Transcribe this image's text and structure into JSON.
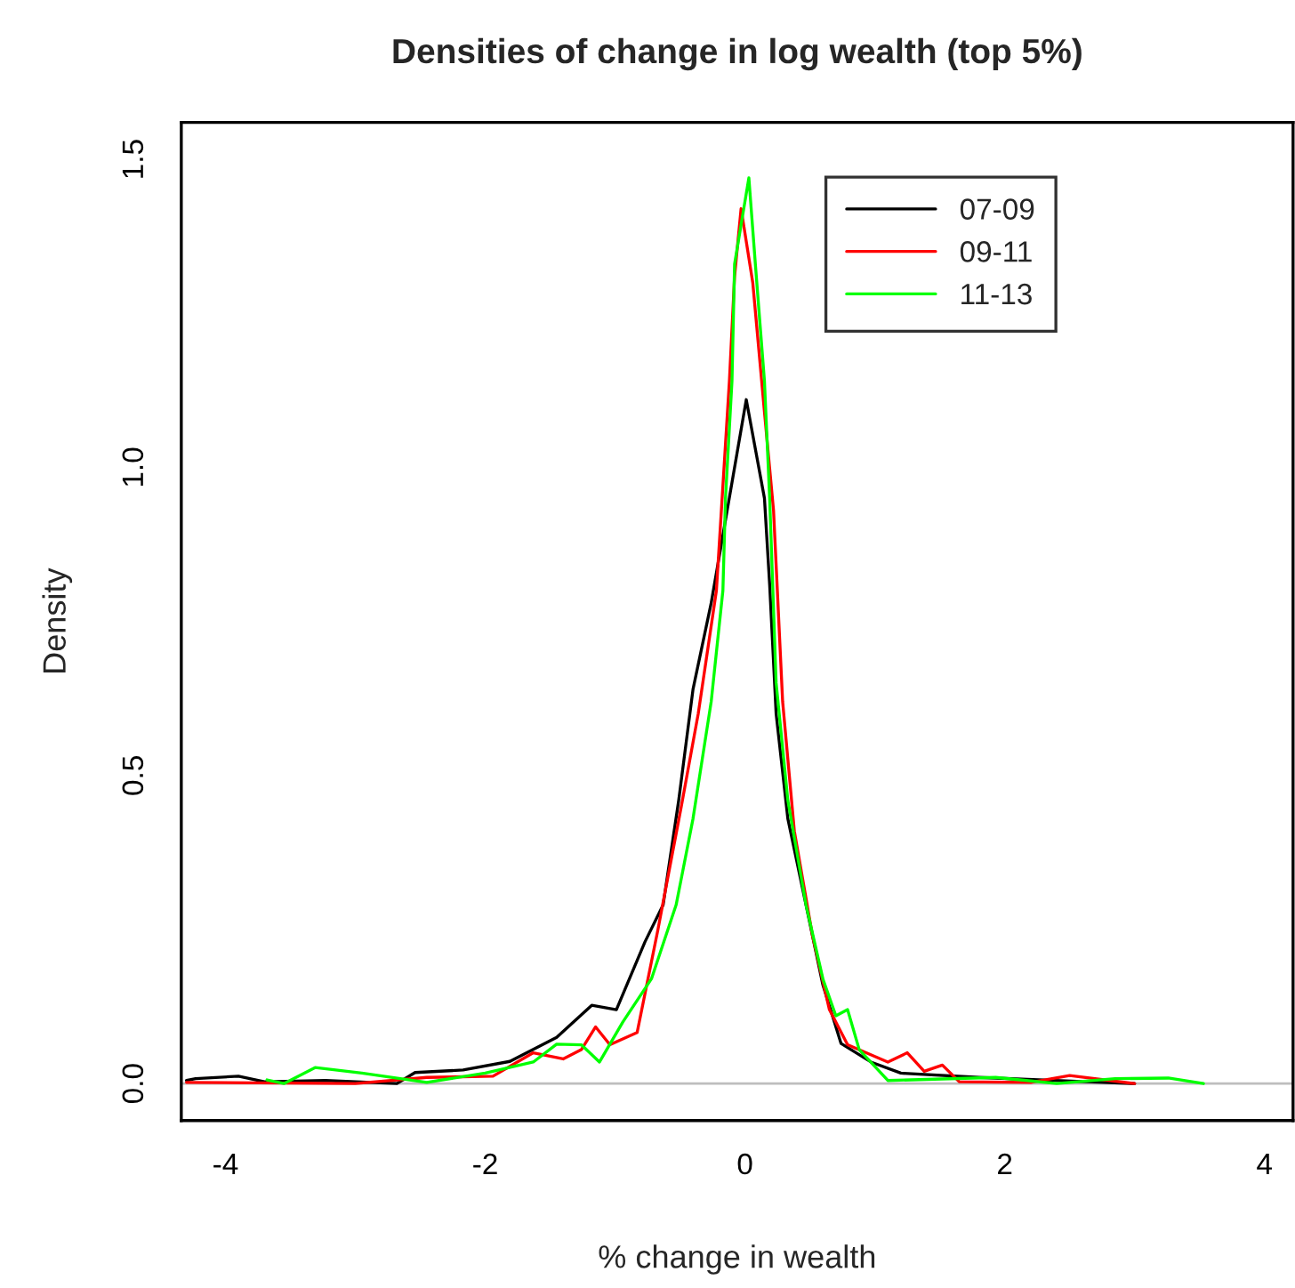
{
  "chart_data": {
    "type": "line",
    "title": "Densities of change in log wealth (top 5%)",
    "xlabel": "% change in wealth",
    "ylabel": "Density",
    "xlim": [
      -4.34,
      4.22
    ],
    "xticks": [
      {
        "value": -4,
        "label": "-4"
      },
      {
        "value": -2,
        "label": "-2"
      },
      0,
      2,
      4
    ],
    "ylim": [
      -0.06,
      1.56
    ],
    "yticks": [
      {
        "value": 0,
        "label": "0.0"
      },
      0.5,
      {
        "value": 1,
        "label": "1.0"
      },
      1.5
    ],
    "grid": false,
    "legend": "top right",
    "line_style": "solid",
    "marker": "none",
    "ref_lines": [
      {
        "axis": "y",
        "value": 0,
        "color": "#bebebe"
      }
    ],
    "series": [
      {
        "name": "07-09",
        "color": "#000000",
        "x": [
          -4.3,
          -4.23,
          -3.9,
          -3.7,
          -3.23,
          -2.68,
          -2.54,
          -2.17,
          -1.81,
          -1.45,
          -1.18,
          -0.99,
          -0.77,
          -0.63,
          -0.51,
          -0.4,
          -0.26,
          -0.17,
          0.01,
          0.15,
          0.19,
          0.24,
          0.33,
          0.47,
          0.6,
          0.74,
          0.97,
          1.2,
          1.8,
          3.0
        ],
        "values": [
          0.005,
          0.008,
          0.012,
          0.003,
          0.005,
          0.0,
          0.018,
          0.022,
          0.036,
          0.075,
          0.127,
          0.12,
          0.23,
          0.29,
          0.46,
          0.64,
          0.78,
          0.89,
          1.11,
          0.95,
          0.81,
          0.6,
          0.43,
          0.29,
          0.16,
          0.065,
          0.035,
          0.017,
          0.01,
          0.0
        ]
      },
      {
        "name": "09-11",
        "color": "#ff0000",
        "x": [
          -4.3,
          -3.0,
          -2.45,
          -1.94,
          -1.63,
          -1.4,
          -1.26,
          -1.15,
          -1.04,
          -0.83,
          -0.67,
          -0.49,
          -0.36,
          -0.22,
          -0.12,
          -0.08,
          -0.03,
          0.06,
          0.15,
          0.22,
          0.29,
          0.38,
          0.52,
          0.65,
          0.79,
          1.1,
          1.25,
          1.38,
          1.52,
          1.65,
          2.2,
          2.5,
          3.0
        ],
        "values": [
          0.002,
          0.0,
          0.01,
          0.012,
          0.05,
          0.04,
          0.055,
          0.092,
          0.063,
          0.083,
          0.25,
          0.45,
          0.6,
          0.8,
          1.14,
          1.31,
          1.42,
          1.3,
          1.09,
          0.93,
          0.62,
          0.41,
          0.24,
          0.12,
          0.063,
          0.035,
          0.05,
          0.02,
          0.03,
          0.003,
          0.002,
          0.013,
          0.0
        ]
      },
      {
        "name": "11-13",
        "color": "#00ff00",
        "x": [
          -3.68,
          -3.55,
          -3.31,
          -2.95,
          -2.45,
          -2.0,
          -1.63,
          -1.45,
          -1.26,
          -1.12,
          -0.94,
          -0.72,
          -0.53,
          -0.4,
          -0.26,
          -0.17,
          -0.15,
          -0.1,
          -0.08,
          0.03,
          0.08,
          0.15,
          0.19,
          0.24,
          0.33,
          0.47,
          0.6,
          0.7,
          0.79,
          0.88,
          1.1,
          1.93,
          2.4,
          2.85,
          3.26,
          3.53
        ],
        "values": [
          0.006,
          0.0,
          0.026,
          0.017,
          0.002,
          0.017,
          0.035,
          0.064,
          0.063,
          0.035,
          0.1,
          0.17,
          0.29,
          0.43,
          0.62,
          0.8,
          0.95,
          1.14,
          1.33,
          1.47,
          1.33,
          1.14,
          0.95,
          0.65,
          0.46,
          0.29,
          0.17,
          0.11,
          0.12,
          0.055,
          0.005,
          0.01,
          0.0,
          0.008,
          0.009,
          0.0
        ]
      }
    ]
  }
}
